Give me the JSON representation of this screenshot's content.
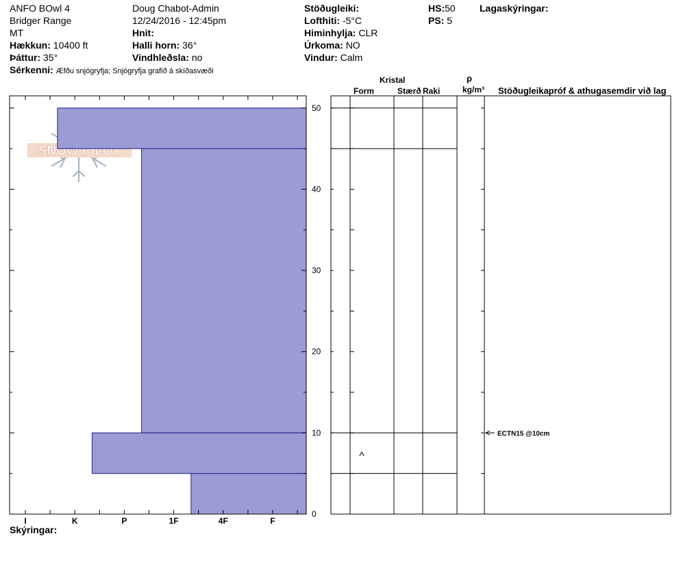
{
  "header": {
    "location": "ANFO BOwl 4",
    "range": "Bridger Range",
    "state": "MT",
    "elevation_label": "Hækkun:",
    "elevation_value": "10400 ft",
    "aspect_label": "Þáttur:",
    "aspect_value": "35°",
    "features_label": "Sérkenni:",
    "features_value": "Æfðu snjógryfja;  Snjógryfja grafið á skíðasvæði",
    "observer": "Doug Chabot-Admin",
    "datetime": "12/24/2016 - 12:45pm",
    "coords_label": "Hnit:",
    "slope_label": "Halli horn:",
    "slope_value": "36°",
    "wind_loading_label": "Vindhleðsla:",
    "wind_loading_value": "no",
    "stability_label": "Stöðugleiki:",
    "air_temp_label": "Lofthiti:",
    "air_temp_value": "-5°C",
    "sky_label": "Himinhylja:",
    "sky_value": "CLR",
    "precip_label": "Úrkoma:",
    "precip_value": "NO",
    "wind_label": "Vindur:",
    "wind_value": "Calm",
    "hs_label": "HS:",
    "hs_value": "50",
    "ps_label": "PS:",
    "ps_value": "5",
    "layer_notes_label": "Lagaskýringar:",
    "notes_label": "Skýringar:"
  },
  "logo_text": "SNOW PILOT",
  "columns": {
    "crystal": "Kristal",
    "form": "Form",
    "size": "Stærð",
    "moisture": "Raki",
    "rho": "ρ",
    "density_unit": "kg/m³",
    "tests": "Stöðugleikapróf & athugasemdir við lag"
  },
  "chart_data": {
    "type": "bar",
    "x_categories": [
      "I",
      "K",
      "P",
      "1F",
      "4F",
      "F"
    ],
    "y_ticks": [
      0,
      10,
      20,
      30,
      40,
      50
    ],
    "ylim": [
      0,
      51.5
    ],
    "layers": [
      {
        "bottom": 0,
        "top": 5,
        "hardness_index": 3.35
      },
      {
        "bottom": 5,
        "top": 10,
        "hardness_index": 1.35
      },
      {
        "bottom": 10,
        "top": 45,
        "hardness_index": 2.35
      },
      {
        "bottom": 45,
        "top": 50,
        "hardness_index": 0.65
      }
    ],
    "grain_form_symbols": [
      {
        "depth": 7.5,
        "symbol": "^"
      }
    ],
    "stability_tests": [
      {
        "depth": 10,
        "text": "ECTN15 @10cm"
      }
    ],
    "colors": {
      "layer_fill": "#9b9bd6",
      "layer_stroke": "#1c1c8c"
    }
  }
}
